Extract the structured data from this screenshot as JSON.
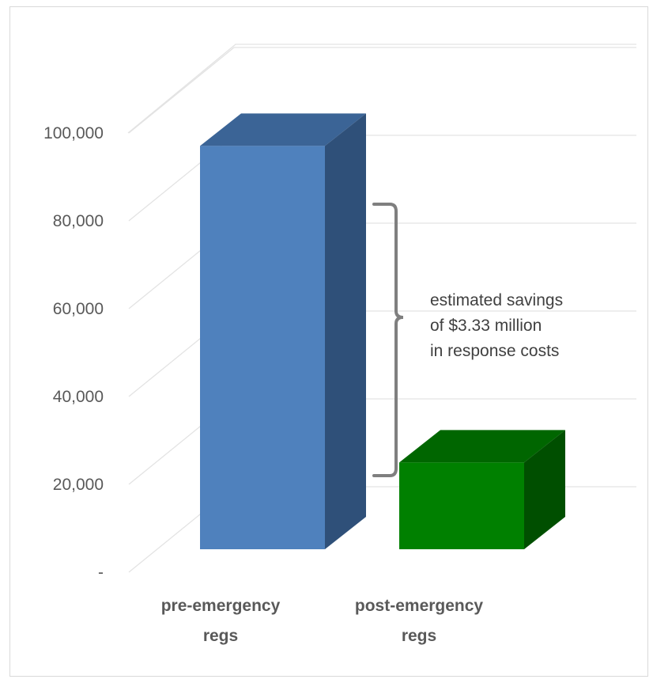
{
  "chart_data": {
    "type": "bar",
    "categories": [
      "pre-emergency regs",
      "post-emergency regs"
    ],
    "category_lines": [
      [
        "pre-emergency",
        "regs"
      ],
      [
        "post-emergency",
        "regs"
      ]
    ],
    "values": [
      93000,
      20000
    ],
    "ylim": [
      0,
      100000
    ],
    "yticks": [
      0,
      20000,
      40000,
      60000,
      80000,
      100000
    ],
    "ytick_labels": [
      "-",
      "20,000",
      "40,000",
      "60,000",
      "80,000",
      "100,000"
    ],
    "title": "",
    "xlabel": "",
    "ylabel": "",
    "grid": true,
    "legend": "none",
    "three_d": true,
    "bar_colors": [
      {
        "front": "#4f81bd",
        "top": "#3b6496",
        "side": "#2f5079"
      },
      {
        "front": "#008000",
        "top": "#006600",
        "side": "#004f00"
      }
    ],
    "annotation": {
      "lines": [
        "estimated savings",
        "of $3.33 million",
        "in response costs"
      ],
      "bracket_color": "#7f7f7f",
      "text_color": "#404040"
    }
  }
}
